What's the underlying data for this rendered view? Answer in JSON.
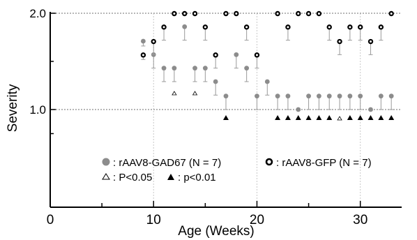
{
  "chart_data": {
    "type": "scatter",
    "xlabel": "Age (Weeks)",
    "ylabel": "Severity",
    "xlim": [
      0,
      34
    ],
    "ylim": [
      0.7,
      2.0
    ],
    "x_ticks": [
      0,
      10,
      20,
      30
    ],
    "x_tick_labels": [
      "0",
      "10",
      "20",
      "30"
    ],
    "y_ticks": [
      1.0,
      2.0
    ],
    "y_tick_labels": [
      "1.0",
      "2.0"
    ],
    "y_minor_ticks": [
      0.75,
      1.5
    ],
    "grid": "dotted",
    "legend_position": "bottom-center",
    "legend": {
      "gad": ": rAAV8-GAD67 (N = 7)",
      "gfp": ": rAAV8-GFP (N = 7)",
      "p05": ": P<0.05",
      "p01": ": p<0.01"
    },
    "series": [
      {
        "name": "rAAV8-GAD67 (N = 7)",
        "marker": "filled-circle",
        "color": "#8c8c8c",
        "points": [
          {
            "x": 9,
            "y": 1.71,
            "err": 0.05
          },
          {
            "x": 10,
            "y": 1.57,
            "err": 0.14
          },
          {
            "x": 11,
            "y": 1.43,
            "err": 0.14
          },
          {
            "x": 12,
            "y": 1.43,
            "err": 0.14
          },
          {
            "x": 13,
            "y": 1.86,
            "err": 0.14
          },
          {
            "x": 14,
            "y": 1.43,
            "err": 0.14
          },
          {
            "x": 15,
            "y": 1.43,
            "err": 0.14
          },
          {
            "x": 16,
            "y": 1.29,
            "err": 0.14
          },
          {
            "x": 17,
            "y": 1.14,
            "err": 0.14
          },
          {
            "x": 18,
            "y": 1.57,
            "err": 0.14
          },
          {
            "x": 19,
            "y": 1.43,
            "err": 0.14
          },
          {
            "x": 20,
            "y": 1.14,
            "err": 0.14
          },
          {
            "x": 21,
            "y": 1.29,
            "err": 0.14
          },
          {
            "x": 22,
            "y": 1.14,
            "err": 0.14
          },
          {
            "x": 23,
            "y": 1.14,
            "err": 0.14
          },
          {
            "x": 24,
            "y": 1.0,
            "err": 0
          },
          {
            "x": 25,
            "y": 1.14,
            "err": 0.14
          },
          {
            "x": 26,
            "y": 1.14,
            "err": 0.14
          },
          {
            "x": 27,
            "y": 1.14,
            "err": 0.14
          },
          {
            "x": 28,
            "y": 1.14,
            "err": 0.14
          },
          {
            "x": 29,
            "y": 1.14,
            "err": 0.14
          },
          {
            "x": 30,
            "y": 1.14,
            "err": 0.14
          },
          {
            "x": 31,
            "y": 1.0,
            "err": 0
          },
          {
            "x": 32,
            "y": 1.14,
            "err": 0.14
          },
          {
            "x": 33,
            "y": 1.14,
            "err": 0.14
          }
        ]
      },
      {
        "name": "rAAV8-GFP (N = 7)",
        "marker": "open-circle",
        "color": "#000000",
        "points": [
          {
            "x": 9,
            "y": 1.57,
            "err": 0.05
          },
          {
            "x": 10,
            "y": 1.71,
            "err": 0.14
          },
          {
            "x": 11,
            "y": 1.86,
            "err": 0.14
          },
          {
            "x": 12,
            "y": 2.0,
            "err": 0
          },
          {
            "x": 13,
            "y": 2.0,
            "err": 0
          },
          {
            "x": 14,
            "y": 2.0,
            "err": 0
          },
          {
            "x": 15,
            "y": 1.86,
            "err": 0.14
          },
          {
            "x": 16,
            "y": 1.57,
            "err": 0.14
          },
          {
            "x": 17,
            "y": 2.0,
            "err": 0
          },
          {
            "x": 18,
            "y": 2.0,
            "err": 0
          },
          {
            "x": 19,
            "y": 1.86,
            "err": 0.14
          },
          {
            "x": 20,
            "y": 1.57,
            "err": 0.14
          },
          {
            "x": 22,
            "y": 2.0,
            "err": 0
          },
          {
            "x": 23,
            "y": 1.86,
            "err": 0.14
          },
          {
            "x": 24,
            "y": 2.0,
            "err": 0
          },
          {
            "x": 25,
            "y": 2.0,
            "err": 0
          },
          {
            "x": 26,
            "y": 2.0,
            "err": 0
          },
          {
            "x": 27,
            "y": 1.86,
            "err": 0.14
          },
          {
            "x": 28,
            "y": 1.71,
            "err": 0.14
          },
          {
            "x": 29,
            "y": 1.86,
            "err": 0.14
          },
          {
            "x": 30,
            "y": 1.86,
            "err": 0.14
          },
          {
            "x": 31,
            "y": 1.71,
            "err": 0.14
          },
          {
            "x": 32,
            "y": 1.86,
            "err": 0.14
          },
          {
            "x": 33,
            "y": 2.0,
            "err": 0
          }
        ]
      }
    ],
    "significance": {
      "p05_weeks": [
        12,
        14,
        28
      ],
      "p01_weeks": [
        17,
        22,
        23,
        24,
        25,
        26,
        27,
        29,
        30,
        31,
        32,
        33
      ]
    }
  }
}
